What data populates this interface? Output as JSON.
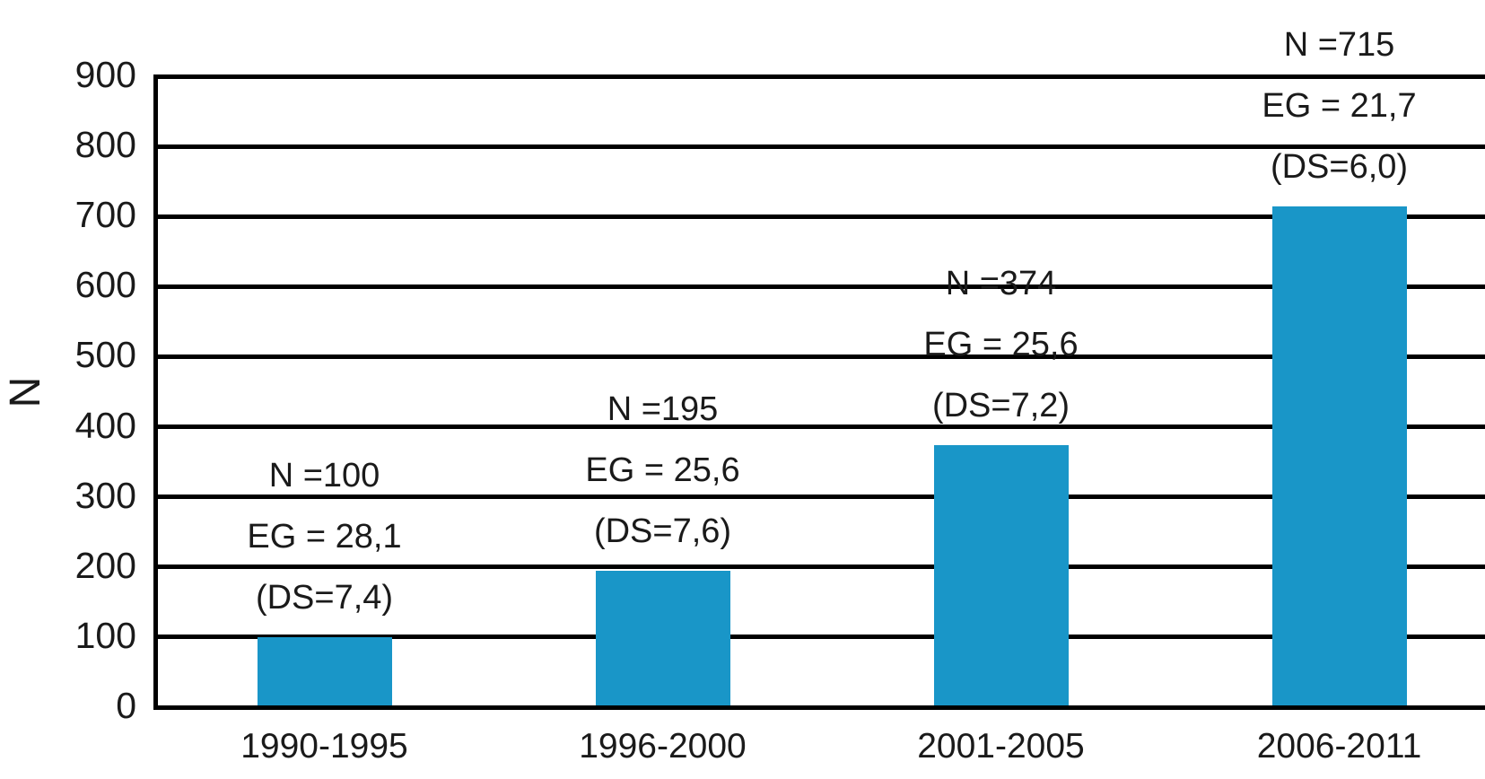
{
  "chart_data": {
    "type": "bar",
    "title": "",
    "xlabel": "",
    "ylabel": "N",
    "categories": [
      "1990-1995",
      "1996-2000",
      "2001-2005",
      "2006-2011"
    ],
    "values": [
      100,
      195,
      374,
      715
    ],
    "bar_annotations": [
      [
        "N =100",
        "EG = 28,1",
        "(DS=7,4)"
      ],
      [
        "N =195",
        "EG = 25,6",
        "(DS=7,6)"
      ],
      [
        "N =374",
        "EG = 25,6",
        "(DS=7,2)"
      ],
      [
        "N =715",
        "EG = 21,7",
        "(DS=6,0)"
      ]
    ],
    "ylim": [
      0,
      900
    ],
    "yticks": [
      0,
      100,
      200,
      300,
      400,
      500,
      600,
      700,
      800,
      900
    ],
    "grid": true,
    "legend_position": "none",
    "bar_color": "#1996C8",
    "axis_color": "#000000",
    "text_color": "#1a1a1a"
  }
}
